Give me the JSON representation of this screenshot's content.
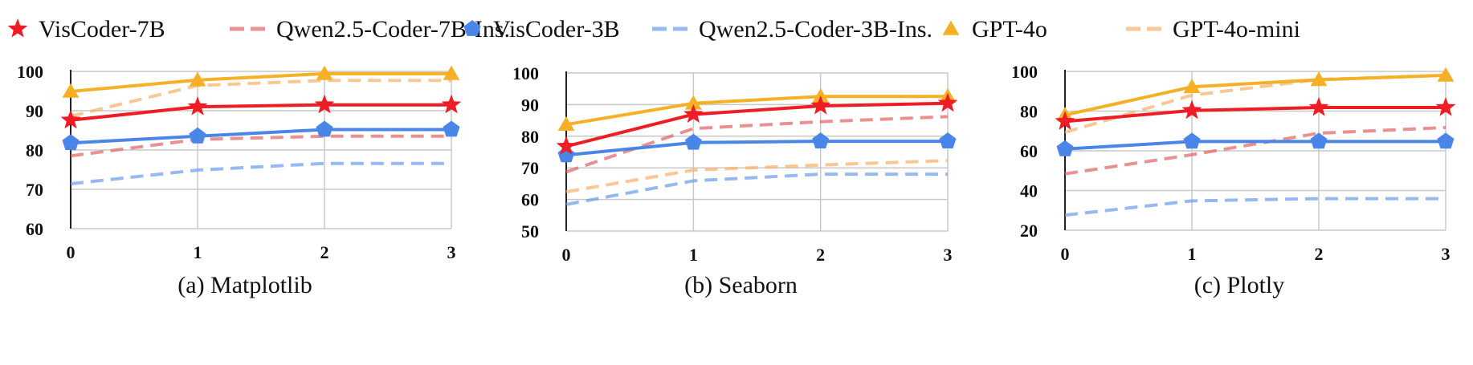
{
  "legend": [
    {
      "name": "VisCoder-7B",
      "color": "#ee1c25",
      "style": "solid",
      "marker": "star"
    },
    {
      "name": "Qwen2.5-Coder-7B-Ins.",
      "color": "#e06666",
      "style": "dashed",
      "marker": "none"
    },
    {
      "name": "VisCoder-3B",
      "color": "#4a86e8",
      "style": "solid",
      "marker": "pentagon"
    },
    {
      "name": "Qwen2.5-Coder-3B-Ins.",
      "color": "#6d9eeb",
      "style": "dashed",
      "marker": "none"
    },
    {
      "name": "GPT-4o",
      "color": "#f6b026",
      "style": "solid",
      "marker": "triangle"
    },
    {
      "name": "GPT-4o-mini",
      "color": "#f6b26b",
      "style": "dashed",
      "marker": "none"
    }
  ],
  "chart_data": [
    {
      "type": "line",
      "title": "(a) Matplotlib",
      "x": [
        0,
        1,
        2,
        3
      ],
      "ylim": [
        60,
        100
      ],
      "yticks": [
        60,
        70,
        80,
        90,
        100
      ],
      "grid": true,
      "series": [
        {
          "name": "VisCoder-7B",
          "values": [
            87.6,
            91.0,
            91.5,
            91.5
          ]
        },
        {
          "name": "Qwen2.5-Coder-7B-Ins.",
          "values": [
            78.5,
            82.7,
            83.5,
            83.5
          ]
        },
        {
          "name": "VisCoder-3B",
          "values": [
            81.8,
            83.5,
            85.2,
            85.2
          ]
        },
        {
          "name": "Qwen2.5-Coder-3B-Ins.",
          "values": [
            71.4,
            74.9,
            76.6,
            76.6
          ]
        },
        {
          "name": "GPT-4o",
          "values": [
            94.9,
            97.8,
            99.4,
            99.4
          ]
        },
        {
          "name": "GPT-4o-mini",
          "values": [
            88.6,
            96.4,
            97.7,
            97.7
          ]
        }
      ]
    },
    {
      "type": "line",
      "title": "(b) Seaborn",
      "x": [
        0,
        1,
        2,
        3
      ],
      "ylim": [
        50,
        100
      ],
      "yticks": [
        50,
        60,
        70,
        80,
        90,
        100
      ],
      "grid": true,
      "series": [
        {
          "name": "VisCoder-7B",
          "values": [
            76.8,
            86.9,
            89.6,
            90.4
          ]
        },
        {
          "name": "Qwen2.5-Coder-7B-Ins.",
          "values": [
            68.7,
            82.4,
            84.6,
            86.2
          ]
        },
        {
          "name": "VisCoder-3B",
          "values": [
            74.0,
            78.0,
            78.4,
            78.4
          ]
        },
        {
          "name": "Qwen2.5-Coder-3B-Ins.",
          "values": [
            58.4,
            65.9,
            68.0,
            68.0
          ]
        },
        {
          "name": "GPT-4o",
          "values": [
            83.7,
            90.4,
            92.6,
            92.6
          ]
        },
        {
          "name": "GPT-4o-mini",
          "values": [
            62.4,
            69.3,
            70.9,
            72.3
          ]
        }
      ]
    },
    {
      "type": "line",
      "title": "(c) Plotly",
      "x": [
        0,
        1,
        2,
        3
      ],
      "ylim": [
        20,
        100
      ],
      "yticks": [
        20,
        40,
        60,
        80,
        100
      ],
      "grid": true,
      "series": [
        {
          "name": "VisCoder-7B",
          "values": [
            74.8,
            80.3,
            81.8,
            81.8
          ]
        },
        {
          "name": "Qwen2.5-Coder-7B-Ins.",
          "values": [
            48.4,
            58.0,
            68.9,
            71.7
          ]
        },
        {
          "name": "VisCoder-3B",
          "values": [
            60.9,
            64.7,
            64.7,
            64.7
          ]
        },
        {
          "name": "Qwen2.5-Coder-3B-Ins.",
          "values": [
            27.6,
            34.8,
            35.9,
            35.9
          ]
        },
        {
          "name": "GPT-4o",
          "values": [
            78.0,
            92.2,
            95.8,
            98.0
          ]
        },
        {
          "name": "GPT-4o-mini",
          "values": [
            69.3,
            88.0,
            95.9,
            98.1
          ]
        }
      ]
    }
  ]
}
